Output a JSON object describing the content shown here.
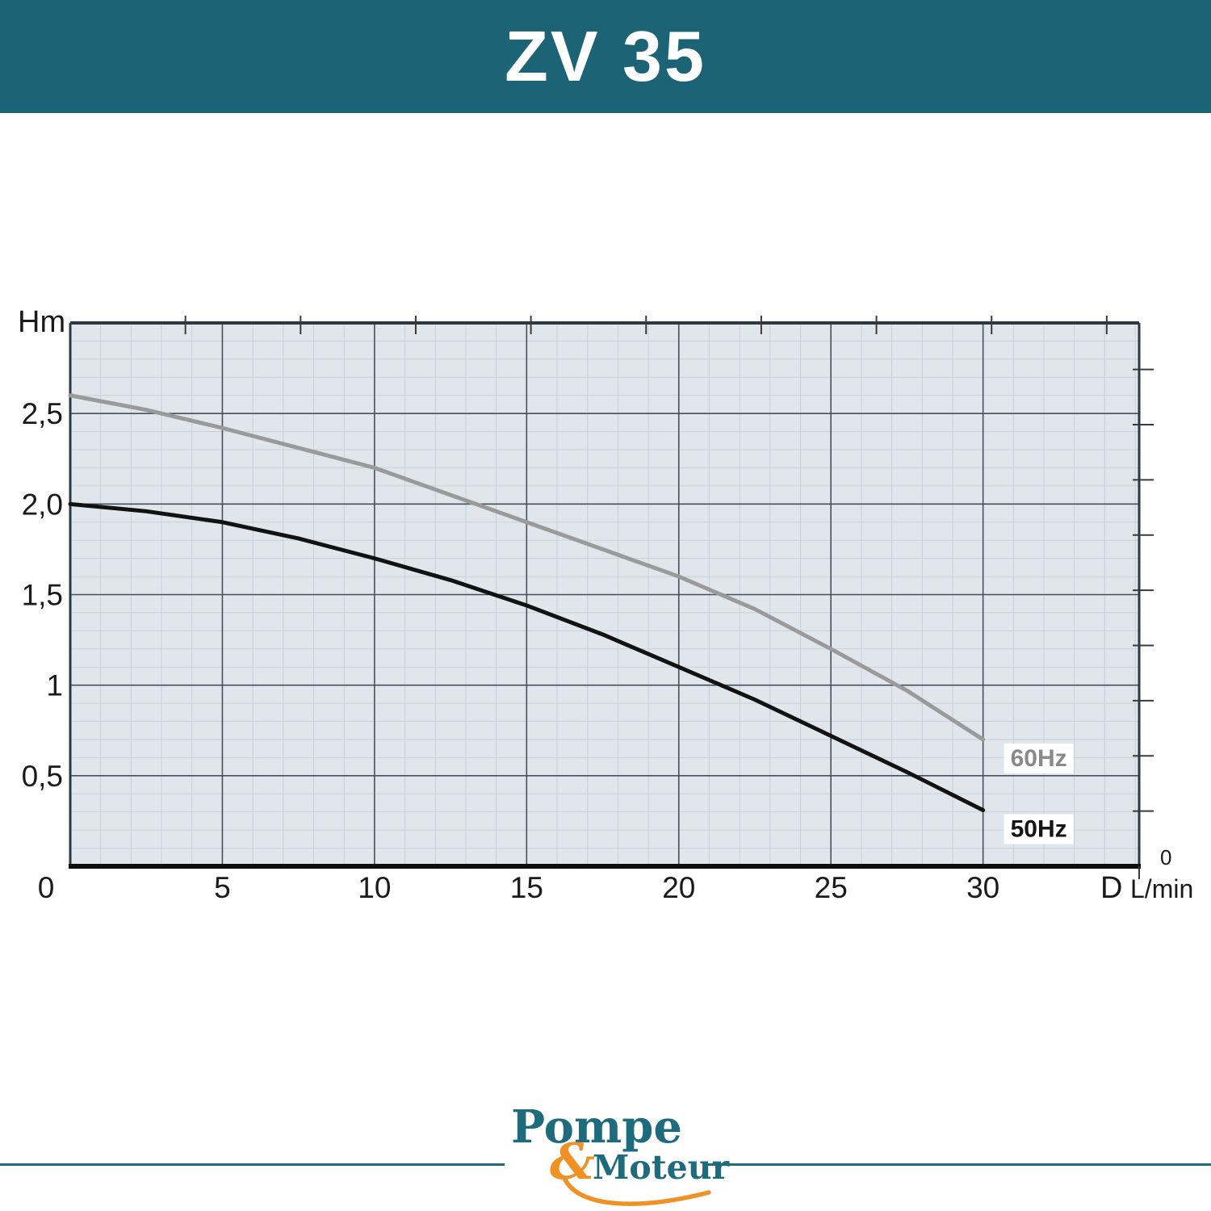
{
  "header": {
    "title": "ZV 35",
    "bg_color": "#1d6376",
    "text_color": "#ffffff"
  },
  "chart_data": {
    "type": "line",
    "title": "ZV 35",
    "ylabel": "Hm",
    "xlabel_prefix": "D",
    "xlabel_unit": "L/min",
    "xlim": [
      0,
      35.13
    ],
    "ylim": [
      0,
      3.0
    ],
    "grid": "on",
    "minor_x_step": 1,
    "minor_y_step": 0.1,
    "x_ticks": [
      {
        "v": 0,
        "label": "0"
      },
      {
        "v": 5,
        "label": "5"
      },
      {
        "v": 10,
        "label": "10"
      },
      {
        "v": 15,
        "label": "15"
      },
      {
        "v": 20,
        "label": "20"
      },
      {
        "v": 25,
        "label": "25"
      },
      {
        "v": 30,
        "label": "30"
      }
    ],
    "y_ticks": [
      {
        "v": 0.5,
        "label": "0,5"
      },
      {
        "v": 1,
        "label": "1"
      },
      {
        "v": 1.5,
        "label": "1,5"
      },
      {
        "v": 2,
        "label": "2,0"
      },
      {
        "v": 2.5,
        "label": "2,5"
      }
    ],
    "secondary_top_tick_step": 3.785,
    "secondary_top_tick_count": 9,
    "secondary_right_tick_step": 0.3048,
    "secondary_right_tick_count": 9,
    "secondary_right_zero_label": "0",
    "legend_position": "right-of-curve-ends",
    "series": [
      {
        "name": "60Hz",
        "color": "#9a9a9a",
        "label_color": "#8a8a8a",
        "x": [
          0,
          2.5,
          5,
          7.5,
          10,
          12.5,
          15,
          17.5,
          20,
          22.5,
          25,
          27.5,
          30
        ],
        "y": [
          2.6,
          2.52,
          2.42,
          2.31,
          2.2,
          2.05,
          1.9,
          1.75,
          1.6,
          1.42,
          1.2,
          0.97,
          0.7
        ]
      },
      {
        "name": "50Hz",
        "color": "#121212",
        "label_color": "#151515",
        "x": [
          0,
          2.5,
          5,
          7.5,
          10,
          12.5,
          15,
          17.5,
          20,
          22.5,
          25,
          27.5,
          30
        ],
        "y": [
          2.0,
          1.96,
          1.9,
          1.81,
          1.7,
          1.58,
          1.44,
          1.28,
          1.1,
          0.92,
          0.72,
          0.52,
          0.31
        ]
      }
    ],
    "colors": {
      "plot_bg": "#e1e6ec",
      "grid_minor": "#c7d0d9",
      "grid_major": "#46505b",
      "border": "#2e3842",
      "axis": "#0d0d0d",
      "legend_bg": "#ffffff",
      "tick_label": "#1a1a1a"
    }
  },
  "logo": {
    "word1": "Pompe",
    "amp": "&",
    "word2": "Moteur",
    "teal": "#1f6b7e",
    "orange": "#ef9223"
  }
}
